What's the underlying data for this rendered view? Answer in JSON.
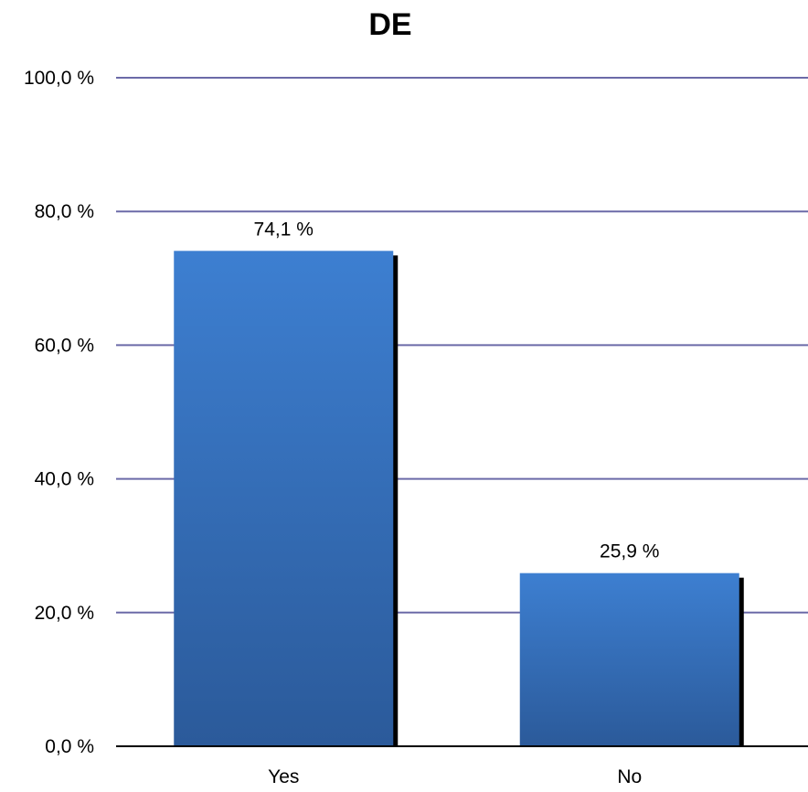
{
  "chart_data": {
    "type": "bar",
    "title": "DE",
    "categories": [
      "Yes",
      "No"
    ],
    "values": [
      74.1,
      25.9
    ],
    "data_labels": [
      "74,1 %",
      "25,9 %"
    ],
    "ylim": [
      0,
      100
    ],
    "yticks": [
      0,
      20,
      40,
      60,
      80,
      100
    ],
    "ytick_labels": [
      "0,0 %",
      "20,0 %",
      "40,0 %",
      "60,0 %",
      "80,0 %",
      "100,0 %"
    ],
    "xlabel": "",
    "ylabel": "",
    "grid": true,
    "legend": "none",
    "colors": {
      "bar_top": "#3d7fd1",
      "bar_bottom": "#2b5a9a",
      "bar_shadow": "#000000",
      "gridline": "#6b6aa8",
      "axis": "#000000"
    }
  }
}
